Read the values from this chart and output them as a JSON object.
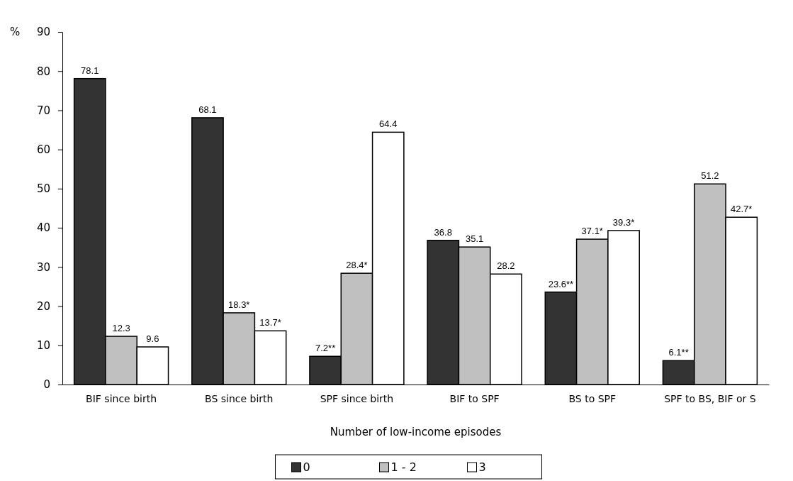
{
  "chart_data": {
    "type": "bar",
    "ylabel": "%",
    "xlabel": "Number of low-income episodes",
    "categories": [
      "BIF since birth",
      "BS since birth",
      "SPF since birth",
      "BIF to SPF",
      "BS to SPF",
      "SPF to BS, BIF or S"
    ],
    "series": [
      {
        "name": "0",
        "color": "#333333",
        "values": [
          78.1,
          68.1,
          7.2,
          36.8,
          23.6,
          6.1
        ],
        "value_labels": [
          "78.1",
          "68.1",
          "7.2**",
          "36.8",
          "23.6**",
          "6.1**"
        ]
      },
      {
        "name": "1 - 2",
        "color": "#c0c0c0",
        "values": [
          12.3,
          18.3,
          28.4,
          35.1,
          37.1,
          51.2
        ],
        "value_labels": [
          "12.3",
          "18.3*",
          "28.4*",
          "35.1",
          "37.1*",
          "51.2"
        ]
      },
      {
        "name": "3",
        "color": "#ffffff",
        "values": [
          9.6,
          13.7,
          64.4,
          28.2,
          39.3,
          42.7
        ],
        "value_labels": [
          "9.6",
          "13.7*",
          "64.4",
          "28.2",
          "39.3*",
          "42.7*"
        ]
      }
    ],
    "ylim": [
      0,
      90
    ],
    "yticks": [
      0,
      10,
      20,
      30,
      40,
      50,
      60,
      70,
      80,
      90
    ],
    "grid": false,
    "legend": "bottom"
  }
}
